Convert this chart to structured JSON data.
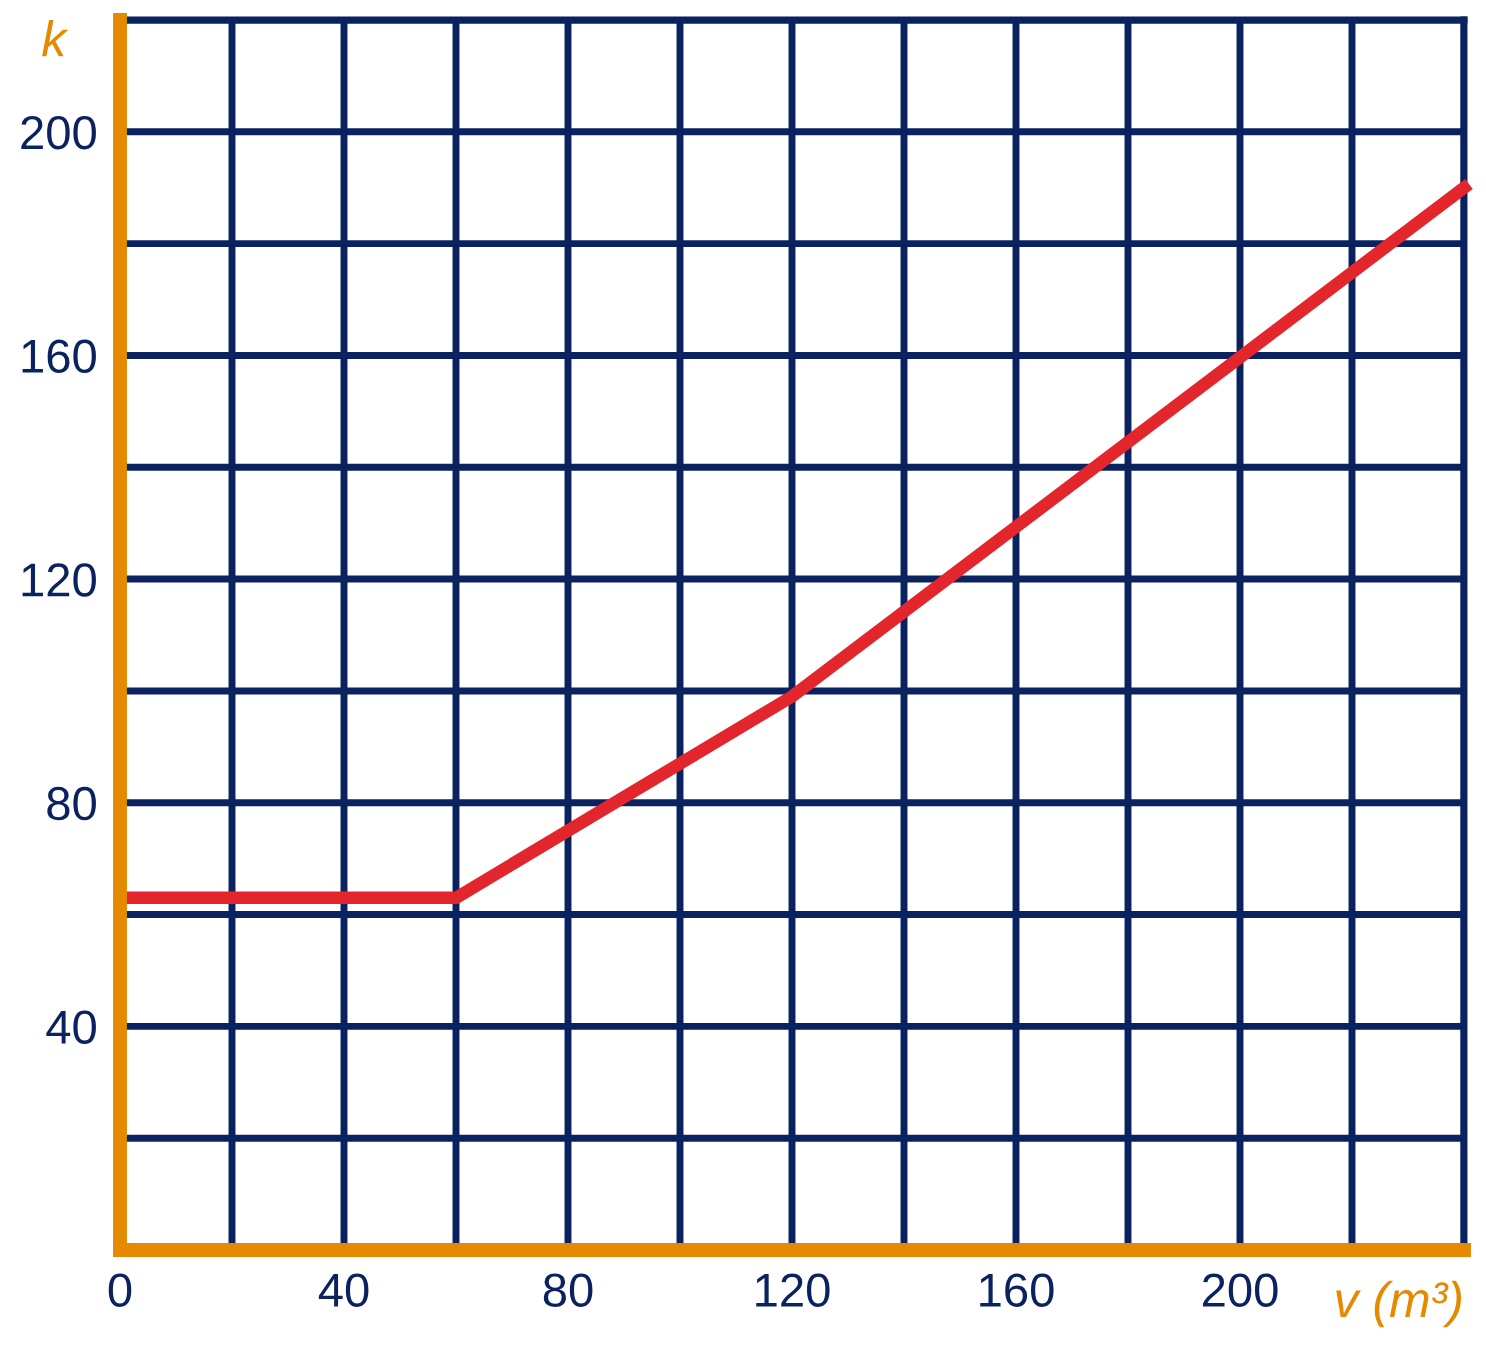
{
  "chart_data": {
    "type": "line",
    "xlabel": "v (m³)",
    "ylabel": "k",
    "x": [
      0,
      60,
      120,
      240
    ],
    "series": [
      {
        "color": "#e3262c",
        "values": [
          63,
          63,
          99,
          190
        ]
      }
    ],
    "xlim": [
      0,
      240
    ],
    "ylim": [
      0,
      220
    ],
    "xticks": [
      0,
      {
        "value": 20,
        "label": null
      },
      40,
      {
        "value": 60,
        "label": null
      },
      80,
      {
        "value": 100,
        "label": null
      },
      120,
      {
        "value": 140,
        "label": null
      },
      160,
      {
        "value": 180,
        "label": null
      },
      200,
      {
        "value": 220,
        "label": null
      },
      {
        "value": 240,
        "label": null
      }
    ],
    "yticks": [
      {
        "value": 0,
        "label": null
      },
      {
        "value": 20,
        "label": null
      },
      40,
      {
        "value": 60,
        "label": null
      },
      80,
      {
        "value": 100,
        "label": null
      },
      120,
      {
        "value": 140,
        "label": null
      },
      160,
      {
        "value": 180,
        "label": null
      },
      200,
      {
        "value": 220,
        "label": null
      }
    ],
    "grid": true,
    "marker": "none",
    "line_style": "solid",
    "legend": false
  }
}
